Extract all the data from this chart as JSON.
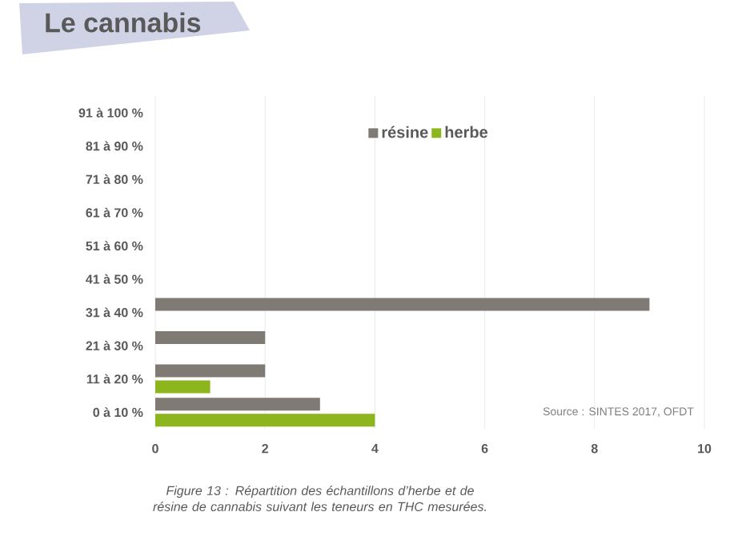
{
  "chart_data": {
    "type": "bar",
    "orientation": "horizontal",
    "title": "Le cannabis",
    "categories": [
      "91 à 100 %",
      "81 à 90 %",
      "71 à 80 %",
      "61 à 70 %",
      "51 à 60 %",
      "41 à 50 %",
      "31 à 40 %",
      "21 à 30 %",
      "11 à 20 %",
      "0 à 10 %"
    ],
    "series": [
      {
        "name": "résine",
        "color": "#7f7b74",
        "values": [
          0,
          0,
          0,
          0,
          0,
          0,
          9,
          2,
          2,
          3
        ]
      },
      {
        "name": "herbe",
        "color": "#8db51e",
        "values": [
          0,
          0,
          0,
          0,
          0,
          0,
          0,
          0,
          1,
          4
        ]
      }
    ],
    "xlim": [
      0,
      10
    ],
    "xticks": [
      0,
      2,
      4,
      6,
      8,
      10
    ],
    "grid": "x",
    "legend": "top",
    "annotations": [
      "Source : SINTES 2017, OFDT",
      "Figure 13 : Répartition des échantillons d’herbe et de résine de cannabis suivant les teneurs en THC mesurées."
    ]
  }
}
